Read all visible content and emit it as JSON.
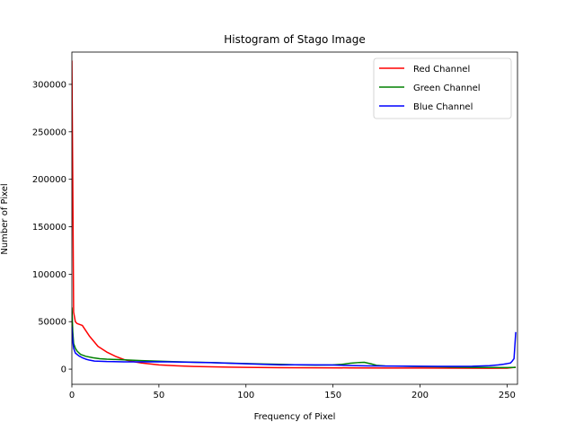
{
  "chart_data": {
    "type": "line",
    "title": "Histogram of Stago Image",
    "xlabel": "Frequency of Pixel",
    "ylabel": "Number of Pixel",
    "xlim": [
      0,
      256
    ],
    "ylim": [
      -16000,
      334000
    ],
    "xticks": [
      0,
      50,
      100,
      150,
      200,
      250
    ],
    "yticks": [
      0,
      50000,
      100000,
      150000,
      200000,
      250000,
      300000
    ],
    "grid": false,
    "legend_position": "top-right",
    "series": [
      {
        "name": "Red Channel",
        "color": "#ff0000",
        "points": [
          [
            0,
            325000
          ],
          [
            0.5,
            200000
          ],
          [
            1,
            60000
          ],
          [
            2,
            50000
          ],
          [
            3,
            48000
          ],
          [
            6,
            46000
          ],
          [
            10,
            35000
          ],
          [
            15,
            24000
          ],
          [
            20,
            18000
          ],
          [
            25,
            13500
          ],
          [
            30,
            10000
          ],
          [
            35,
            8000
          ],
          [
            40,
            6500
          ],
          [
            50,
            4500
          ],
          [
            60,
            3500
          ],
          [
            70,
            2800
          ],
          [
            80,
            2400
          ],
          [
            90,
            2100
          ],
          [
            100,
            1900
          ],
          [
            120,
            1500
          ],
          [
            140,
            1400
          ],
          [
            160,
            1300
          ],
          [
            180,
            1200
          ],
          [
            200,
            1100
          ],
          [
            220,
            1000
          ],
          [
            240,
            900
          ],
          [
            250,
            1000
          ],
          [
            255,
            2000
          ]
        ]
      },
      {
        "name": "Green Channel",
        "color": "#008000",
        "points": [
          [
            0,
            65000
          ],
          [
            0.5,
            40000
          ],
          [
            1,
            27000
          ],
          [
            2,
            22000
          ],
          [
            3,
            19000
          ],
          [
            5,
            15500
          ],
          [
            8,
            13500
          ],
          [
            12,
            12000
          ],
          [
            16,
            11000
          ],
          [
            20,
            10500
          ],
          [
            30,
            9800
          ],
          [
            40,
            9000
          ],
          [
            50,
            8300
          ],
          [
            60,
            7800
          ],
          [
            70,
            7300
          ],
          [
            80,
            6900
          ],
          [
            90,
            6400
          ],
          [
            100,
            5900
          ],
          [
            110,
            5400
          ],
          [
            120,
            5000
          ],
          [
            130,
            4500
          ],
          [
            140,
            4200
          ],
          [
            150,
            4500
          ],
          [
            155,
            5000
          ],
          [
            160,
            6200
          ],
          [
            165,
            7000
          ],
          [
            168,
            7200
          ],
          [
            172,
            5500
          ],
          [
            175,
            4000
          ],
          [
            180,
            3300
          ],
          [
            190,
            3000
          ],
          [
            200,
            2700
          ],
          [
            210,
            2400
          ],
          [
            220,
            2100
          ],
          [
            230,
            1900
          ],
          [
            240,
            1700
          ],
          [
            250,
            1600
          ],
          [
            253,
            1700
          ],
          [
            255,
            1800
          ]
        ]
      },
      {
        "name": "Blue Channel",
        "color": "#0000ff",
        "points": [
          [
            0,
            45000
          ],
          [
            0.5,
            30000
          ],
          [
            1,
            22000
          ],
          [
            2,
            17000
          ],
          [
            4,
            14000
          ],
          [
            6,
            12000
          ],
          [
            8,
            10500
          ],
          [
            10,
            9500
          ],
          [
            13,
            8500
          ],
          [
            20,
            8000
          ],
          [
            30,
            7700
          ],
          [
            40,
            7700
          ],
          [
            50,
            7800
          ],
          [
            60,
            7500
          ],
          [
            70,
            7200
          ],
          [
            80,
            6800
          ],
          [
            90,
            6200
          ],
          [
            100,
            5600
          ],
          [
            110,
            5000
          ],
          [
            120,
            4500
          ],
          [
            130,
            4600
          ],
          [
            140,
            4500
          ],
          [
            150,
            4300
          ],
          [
            160,
            3700
          ],
          [
            170,
            3400
          ],
          [
            180,
            3300
          ],
          [
            190,
            3200
          ],
          [
            200,
            3000
          ],
          [
            210,
            2900
          ],
          [
            220,
            2900
          ],
          [
            230,
            3000
          ],
          [
            240,
            3600
          ],
          [
            245,
            4500
          ],
          [
            248,
            5200
          ],
          [
            250,
            5800
          ],
          [
            252,
            6500
          ],
          [
            253,
            8500
          ],
          [
            254,
            11000
          ],
          [
            255,
            39000
          ]
        ]
      }
    ]
  }
}
